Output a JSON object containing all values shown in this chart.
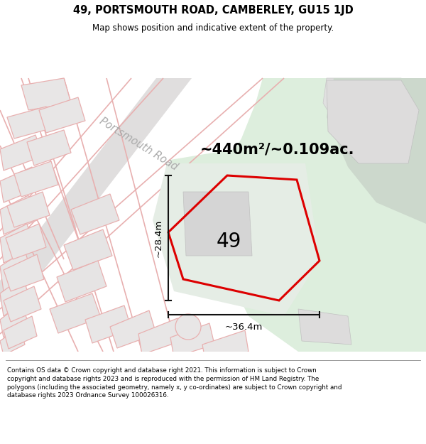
{
  "title_line1": "49, PORTSMOUTH ROAD, CAMBERLEY, GU15 1JD",
  "title_line2": "Map shows position and indicative extent of the property.",
  "area_text": "~440m²/~0.109ac.",
  "number_label": "49",
  "dim_height": "~28.4m",
  "dim_width": "~36.4m",
  "road_label": "Portsmouth Road",
  "footer_text": "Contains OS data © Crown copyright and database right 2021. This information is subject to Crown copyright and database rights 2023 and is reproduced with the permission of HM Land Registry. The polygons (including the associated geometry, namely x, y co-ordinates) are subject to Crown copyright and database rights 2023 Ordnance Survey 100026316.",
  "map_bg": "#eeecec",
  "green_area_color": "#ddeedd",
  "green_area2_color": "#d5e8d5",
  "green_area3_color": "#ccdccc",
  "plot_outline": "#dd0000",
  "road_line_color": "#e8b0b0",
  "road_outline_color": "#d8c8c8",
  "dim_line_color": "#111111",
  "building_fill": "#d8d8d8",
  "building_edge": "#c8c8c8"
}
